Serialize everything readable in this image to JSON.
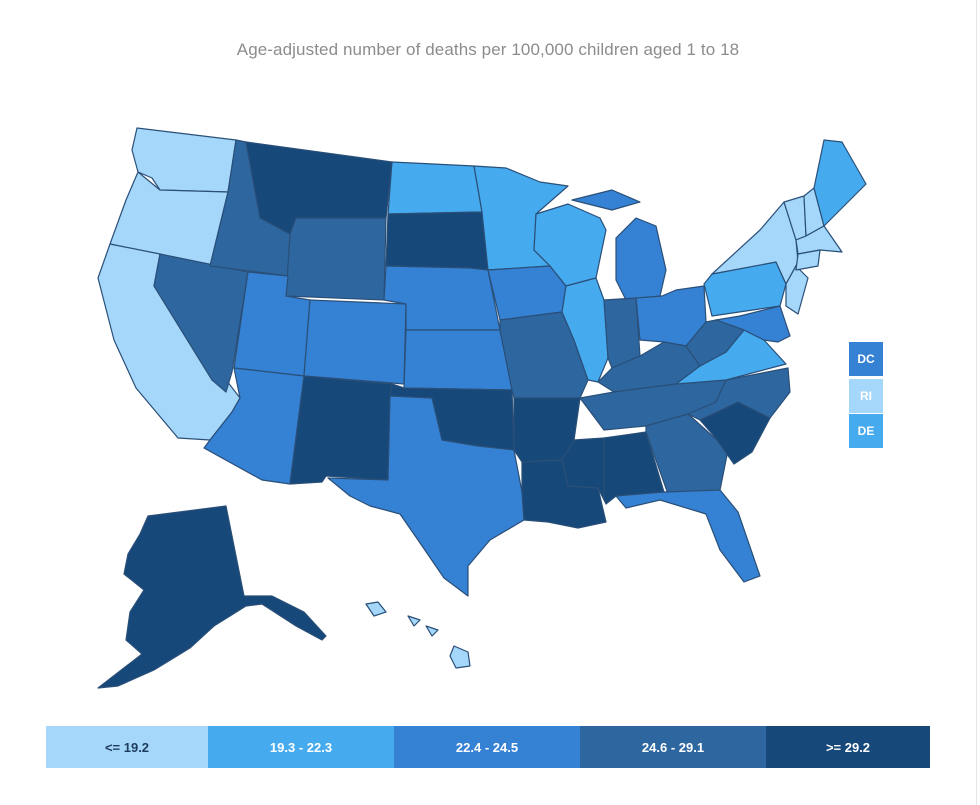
{
  "title": "Age-adjusted number of deaths per 100,000 children aged 1 to 18",
  "legend": {
    "bins": [
      {
        "label": "<= 19.2",
        "color": "#a5d7fa",
        "text_color": "#1d3c5c"
      },
      {
        "label": "19.3 - 22.3",
        "color": "#46aaef",
        "text_color": "#ffffff"
      },
      {
        "label": "22.4 - 24.5",
        "color": "#3581d3",
        "text_color": "#ffffff"
      },
      {
        "label": "24.6 - 29.1",
        "color": "#2e67a0",
        "text_color": "#ffffff"
      },
      {
        "label": ">= 29.2",
        "color": "#164879",
        "text_color": "#ffffff"
      }
    ]
  },
  "small_states": [
    {
      "abbr": "DC",
      "bin": 2
    },
    {
      "abbr": "RI",
      "bin": 0
    },
    {
      "abbr": "DE",
      "bin": 1
    }
  ],
  "states": {
    "WA": 0,
    "OR": 0,
    "CA": 0,
    "NV": 3,
    "ID": 3,
    "MT": 4,
    "WY": 3,
    "UT": 2,
    "AZ": 2,
    "CO": 2,
    "NM": 4,
    "ND": 1,
    "SD": 4,
    "NE": 2,
    "KS": 2,
    "OK": 4,
    "TX": 2,
    "MN": 1,
    "IA": 2,
    "MO": 3,
    "AR": 4,
    "LA": 4,
    "WI": 1,
    "IL": 1,
    "MS": 4,
    "AL": 4,
    "MI": 2,
    "IN": 3,
    "OH": 2,
    "KY": 3,
    "TN": 3,
    "GA": 3,
    "FL": 2,
    "SC": 4,
    "NC": 3,
    "VA": 1,
    "WV": 3,
    "PA": 1,
    "NY": 0,
    "NJ": 0,
    "MD": 2,
    "ME": 1,
    "NH": 0,
    "VT": 0,
    "MA": 0,
    "CT": 0,
    "AK": 4,
    "HI": 0
  }
}
